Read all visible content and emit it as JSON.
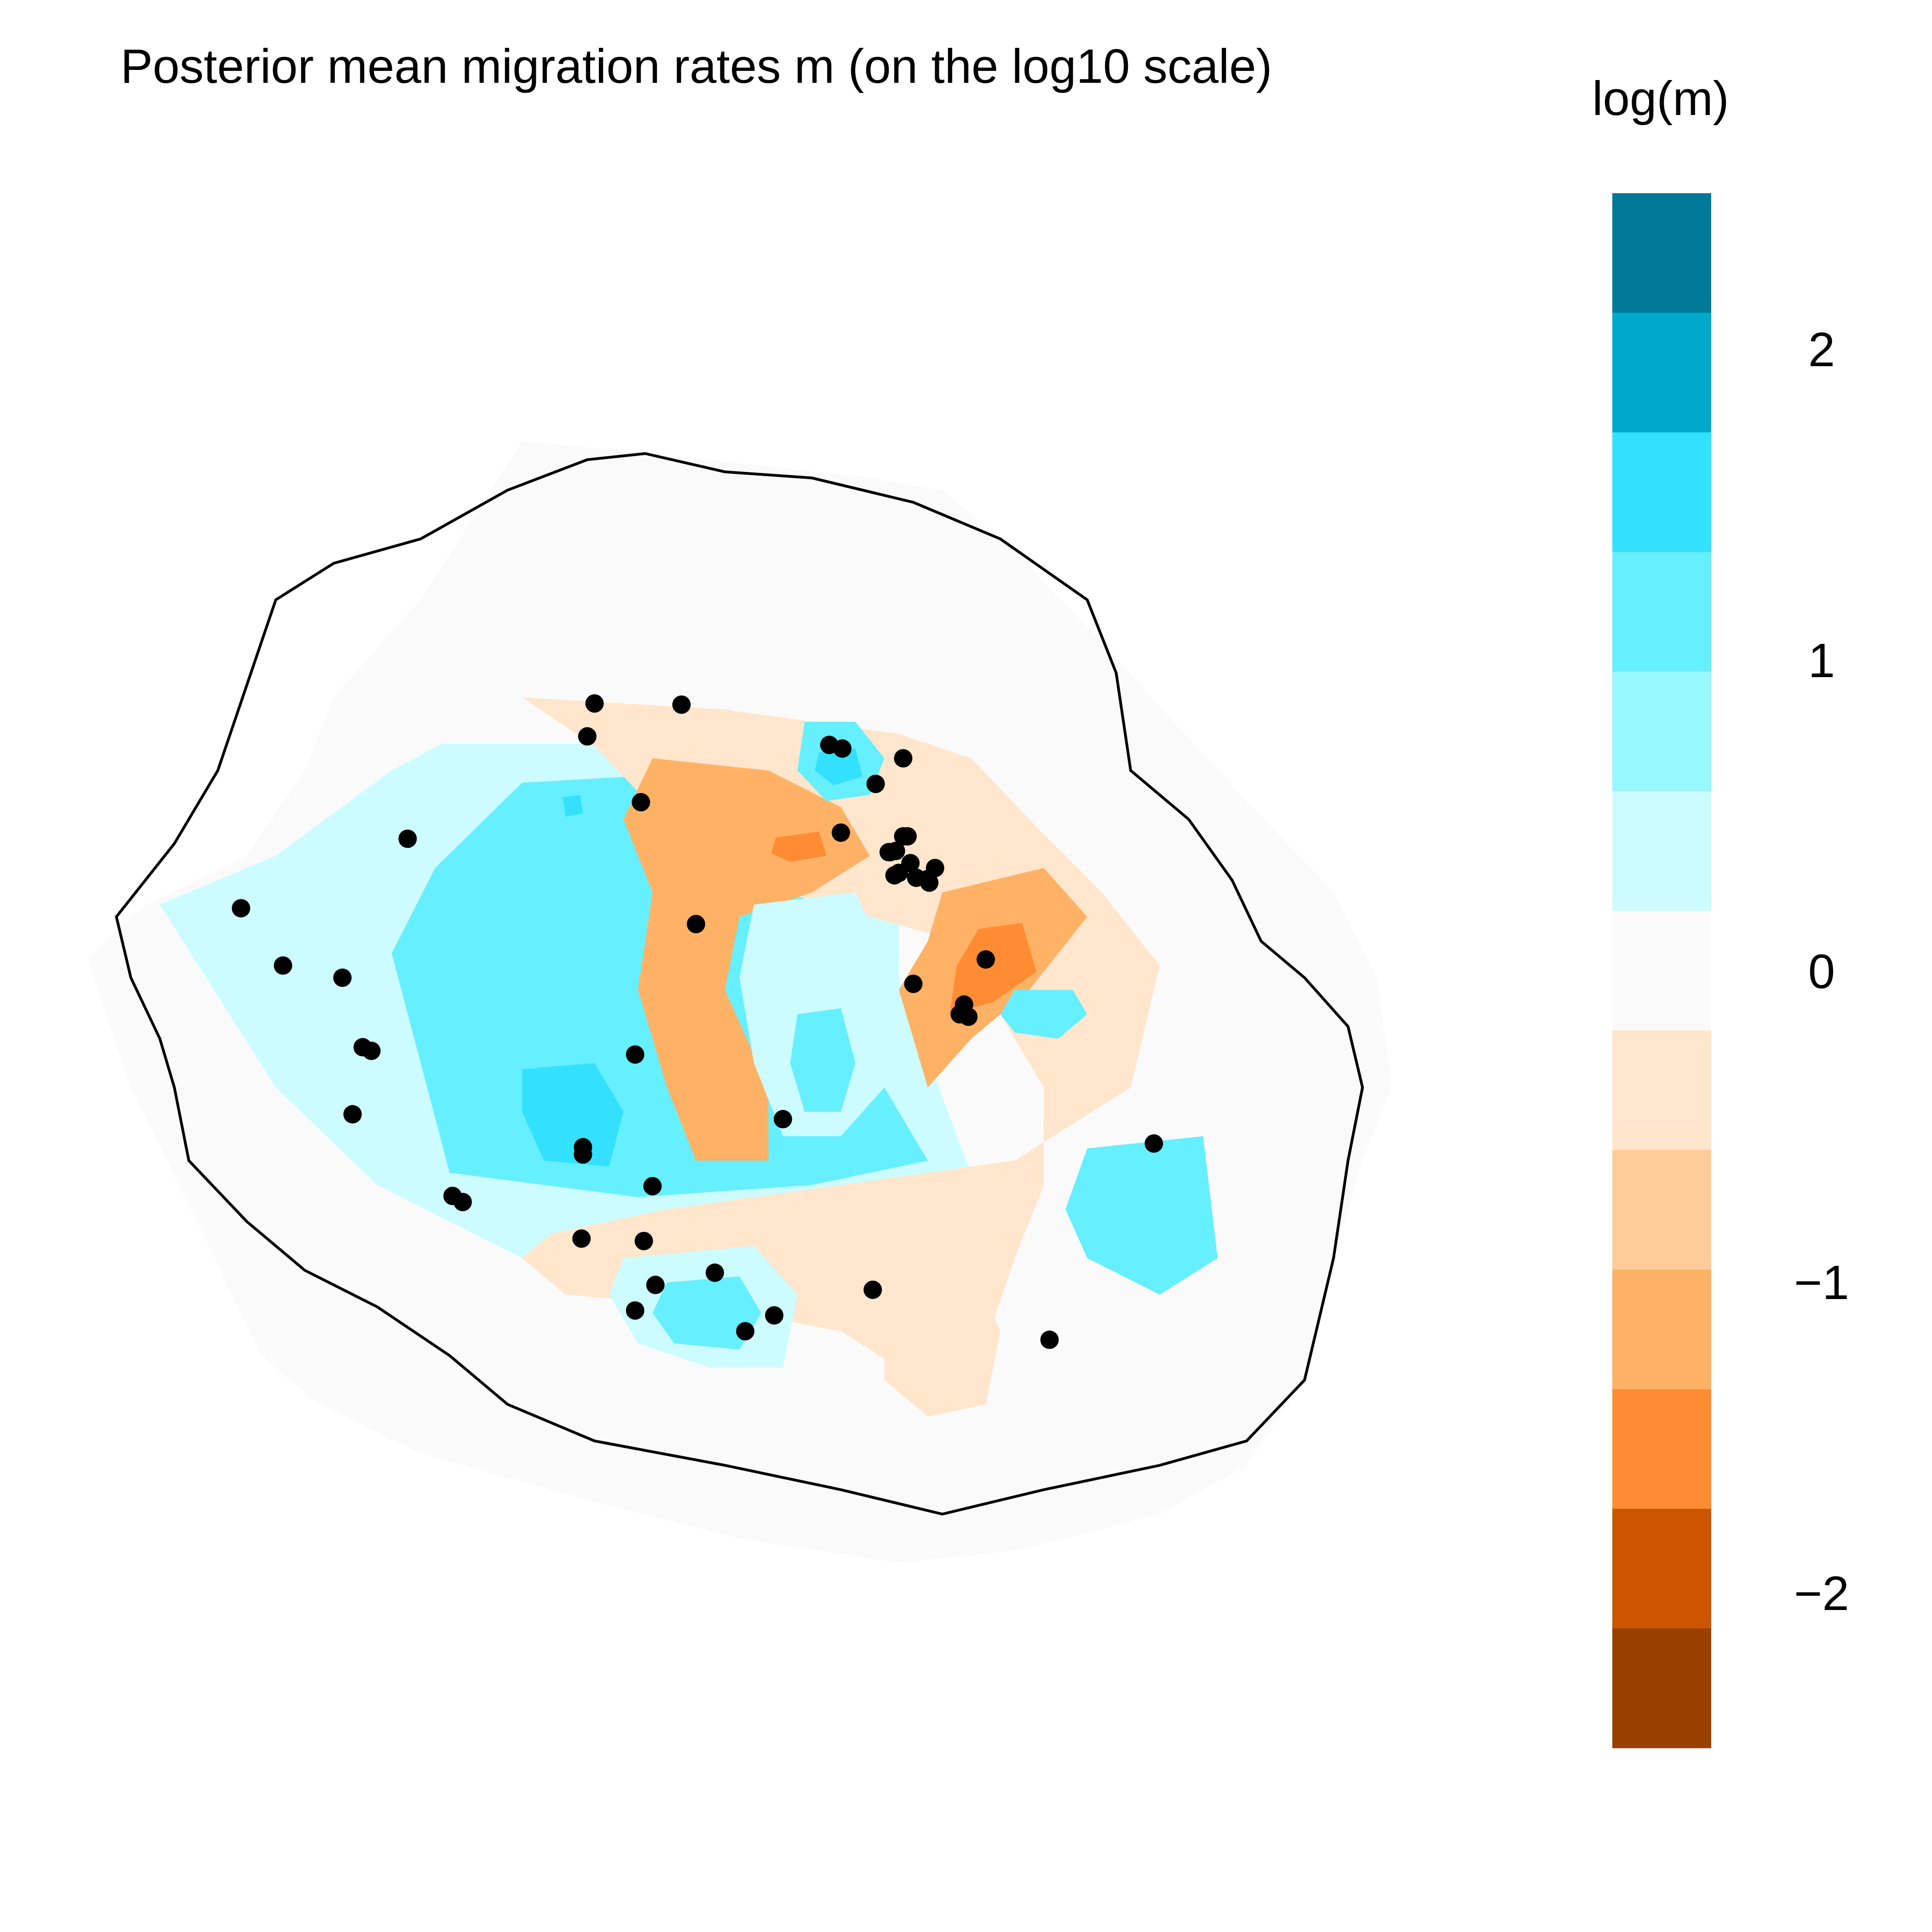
{
  "title": "Posterior mean migration rates m (on the log10 scale)",
  "legend": {
    "title": "log(m)",
    "tick_labels": [
      "2",
      "1",
      "0",
      "−1",
      "−2"
    ],
    "tick_values": [
      2,
      1,
      0,
      -1,
      -2
    ],
    "range": [
      -2.5,
      2.5
    ],
    "colors_top_to_bottom": [
      "#007A99",
      "#00A9CC",
      "#33E1FF",
      "#66EFFF",
      "#99F7FF",
      "#CCFCFF",
      "#FAFAFA",
      "#FFE6CC",
      "#FFCC99",
      "#FFB266",
      "#FF8C33",
      "#CC5500",
      "#994000"
    ]
  },
  "colors": {
    "high_migration": "#00A9CC",
    "neutral": "#FAFAFA",
    "low_migration": "#FF8C33",
    "outline": "#000000",
    "sample": "#000000"
  },
  "chart_data": {
    "type": "heatmap",
    "title": "Posterior mean migration rates m (on the log10 scale)",
    "value_label": "log(m)",
    "value_range": [
      -2.5,
      2.5
    ],
    "grid": false,
    "legend_position": "right",
    "surface_regions": [
      {
        "level": 0.5,
        "shape": [
          [
            0.245,
            0.278
          ],
          [
            0.41,
            0.278
          ],
          [
            0.52,
            0.29
          ],
          [
            0.56,
            0.37
          ],
          [
            0.56,
            0.47
          ],
          [
            0.6,
            0.6
          ],
          [
            0.61,
            0.63
          ],
          [
            0.54,
            0.66
          ],
          [
            0.43,
            0.68
          ],
          [
            0.3,
            0.7
          ],
          [
            0.2,
            0.64
          ],
          [
            0.13,
            0.56
          ],
          [
            0.05,
            0.41
          ],
          [
            0.13,
            0.37
          ],
          [
            0.21,
            0.3
          ]
        ]
      },
      {
        "level": 1.0,
        "shape": [
          [
            0.3,
            0.31
          ],
          [
            0.45,
            0.3
          ],
          [
            0.53,
            0.33
          ],
          [
            0.54,
            0.45
          ],
          [
            0.55,
            0.56
          ],
          [
            0.58,
            0.62
          ],
          [
            0.5,
            0.64
          ],
          [
            0.38,
            0.65
          ],
          [
            0.25,
            0.63
          ],
          [
            0.23,
            0.54
          ],
          [
            0.21,
            0.45
          ],
          [
            0.24,
            0.38
          ]
        ]
      },
      {
        "level": 1.5,
        "shape": [
          [
            0.3,
            0.545
          ],
          [
            0.35,
            0.54
          ],
          [
            0.37,
            0.58
          ],
          [
            0.36,
            0.625
          ],
          [
            0.315,
            0.62
          ],
          [
            0.3,
            0.58
          ]
        ]
      },
      {
        "level": 1.5,
        "shape": [
          [
            0.328,
            0.322
          ],
          [
            0.34,
            0.32
          ],
          [
            0.342,
            0.335
          ],
          [
            0.33,
            0.338
          ]
        ]
      },
      {
        "level": -0.5,
        "shape": [
          [
            0.3,
            0.24
          ],
          [
            0.44,
            0.25
          ],
          [
            0.56,
            0.27
          ],
          [
            0.61,
            0.29
          ],
          [
            0.65,
            0.34
          ],
          [
            0.7,
            0.4
          ],
          [
            0.74,
            0.46
          ],
          [
            0.72,
            0.56
          ],
          [
            0.64,
            0.62
          ],
          [
            0.52,
            0.64
          ],
          [
            0.4,
            0.66
          ],
          [
            0.32,
            0.68
          ],
          [
            0.3,
            0.7
          ],
          [
            0.33,
            0.73
          ],
          [
            0.43,
            0.74
          ],
          [
            0.52,
            0.76
          ],
          [
            0.56,
            0.79
          ],
          [
            0.6,
            0.81
          ],
          [
            0.62,
            0.77
          ],
          [
            0.64,
            0.7
          ],
          [
            0.66,
            0.64
          ],
          [
            0.66,
            0.56
          ],
          [
            0.63,
            0.5
          ],
          [
            0.6,
            0.44
          ],
          [
            0.54,
            0.42
          ],
          [
            0.48,
            0.4
          ],
          [
            0.42,
            0.38
          ],
          [
            0.39,
            0.33
          ],
          [
            0.35,
            0.28
          ]
        ]
      },
      {
        "level": -1.0,
        "shape": [
          [
            0.39,
            0.29
          ],
          [
            0.47,
            0.3
          ],
          [
            0.52,
            0.33
          ],
          [
            0.54,
            0.37
          ],
          [
            0.5,
            0.4
          ],
          [
            0.45,
            0.42
          ],
          [
            0.44,
            0.48
          ],
          [
            0.47,
            0.56
          ],
          [
            0.47,
            0.62
          ],
          [
            0.42,
            0.62
          ],
          [
            0.4,
            0.56
          ],
          [
            0.38,
            0.48
          ],
          [
            0.39,
            0.4
          ],
          [
            0.37,
            0.34
          ]
        ]
      },
      {
        "level": -1.0,
        "shape": [
          [
            0.59,
            0.4
          ],
          [
            0.66,
            0.38
          ],
          [
            0.69,
            0.42
          ],
          [
            0.65,
            0.48
          ],
          [
            0.61,
            0.52
          ],
          [
            0.58,
            0.56
          ],
          [
            0.56,
            0.48
          ],
          [
            0.58,
            0.44
          ]
        ]
      },
      {
        "level": -1.5,
        "shape": [
          [
            0.475,
            0.355
          ],
          [
            0.505,
            0.35
          ],
          [
            0.51,
            0.37
          ],
          [
            0.485,
            0.375
          ],
          [
            0.472,
            0.368
          ]
        ]
      },
      {
        "level": -1.5,
        "shape": [
          [
            0.615,
            0.43
          ],
          [
            0.645,
            0.425
          ],
          [
            0.655,
            0.465
          ],
          [
            0.625,
            0.49
          ],
          [
            0.595,
            0.5
          ],
          [
            0.6,
            0.46
          ]
        ]
      },
      {
        "level": 1.0,
        "shape": [
          [
            0.495,
            0.26
          ],
          [
            0.53,
            0.26
          ],
          [
            0.55,
            0.29
          ],
          [
            0.54,
            0.32
          ],
          [
            0.51,
            0.325
          ],
          [
            0.49,
            0.3
          ]
        ]
      },
      {
        "level": 1.5,
        "shape": [
          [
            0.505,
            0.285
          ],
          [
            0.53,
            0.282
          ],
          [
            0.535,
            0.305
          ],
          [
            0.515,
            0.312
          ],
          [
            0.502,
            0.3
          ]
        ]
      },
      {
        "level": 0.5,
        "shape": [
          [
            0.46,
            0.41
          ],
          [
            0.53,
            0.4
          ],
          [
            0.55,
            0.45
          ],
          [
            0.55,
            0.56
          ],
          [
            0.52,
            0.6
          ],
          [
            0.48,
            0.6
          ],
          [
            0.46,
            0.54
          ],
          [
            0.45,
            0.47
          ]
        ]
      },
      {
        "level": 1.0,
        "shape": [
          [
            0.49,
            0.5
          ],
          [
            0.52,
            0.495
          ],
          [
            0.53,
            0.54
          ],
          [
            0.52,
            0.58
          ],
          [
            0.495,
            0.58
          ],
          [
            0.485,
            0.54
          ]
        ]
      },
      {
        "level": 1.0,
        "shape": [
          [
            0.64,
            0.48
          ],
          [
            0.68,
            0.48
          ],
          [
            0.69,
            0.5
          ],
          [
            0.67,
            0.52
          ],
          [
            0.64,
            0.515
          ],
          [
            0.63,
            0.5
          ]
        ]
      },
      {
        "level": 1.0,
        "shape": [
          [
            0.69,
            0.61
          ],
          [
            0.77,
            0.6
          ],
          [
            0.78,
            0.7
          ],
          [
            0.74,
            0.73
          ],
          [
            0.69,
            0.7
          ],
          [
            0.675,
            0.66
          ]
        ]
      },
      {
        "level": 0.5,
        "shape": [
          [
            0.37,
            0.7
          ],
          [
            0.46,
            0.69
          ],
          [
            0.49,
            0.73
          ],
          [
            0.48,
            0.79
          ],
          [
            0.43,
            0.79
          ],
          [
            0.38,
            0.77
          ],
          [
            0.36,
            0.73
          ]
        ]
      },
      {
        "level": 1.0,
        "shape": [
          [
            0.4,
            0.72
          ],
          [
            0.45,
            0.715
          ],
          [
            0.465,
            0.745
          ],
          [
            0.45,
            0.775
          ],
          [
            0.405,
            0.77
          ],
          [
            0.39,
            0.745
          ]
        ]
      },
      {
        "level": -0.5,
        "shape": [
          [
            0.55,
            0.71
          ],
          [
            0.61,
            0.7
          ],
          [
            0.63,
            0.76
          ],
          [
            0.62,
            0.82
          ],
          [
            0.58,
            0.83
          ],
          [
            0.55,
            0.8
          ]
        ]
      }
    ],
    "sample_points": [
      [
        0.35,
        0.245
      ],
      [
        0.41,
        0.246
      ],
      [
        0.345,
        0.272
      ],
      [
        0.382,
        0.326
      ],
      [
        0.512,
        0.279
      ],
      [
        0.521,
        0.282
      ],
      [
        0.563,
        0.29
      ],
      [
        0.544,
        0.311
      ],
      [
        0.221,
        0.356
      ],
      [
        0.52,
        0.351
      ],
      [
        0.563,
        0.354
      ],
      [
        0.566,
        0.354
      ],
      [
        0.554,
        0.367
      ],
      [
        0.558,
        0.366
      ],
      [
        0.553,
        0.367
      ],
      [
        0.568,
        0.376
      ],
      [
        0.56,
        0.384
      ],
      [
        0.557,
        0.386
      ],
      [
        0.572,
        0.388
      ],
      [
        0.58,
        0.389
      ],
      [
        0.585,
        0.38
      ],
      [
        0.581,
        0.392
      ],
      [
        0.106,
        0.413
      ],
      [
        0.42,
        0.426
      ],
      [
        0.135,
        0.46
      ],
      [
        0.176,
        0.47
      ],
      [
        0.62,
        0.455
      ],
      [
        0.57,
        0.475
      ],
      [
        0.605,
        0.492
      ],
      [
        0.602,
        0.5
      ],
      [
        0.608,
        0.502
      ],
      [
        0.19,
        0.527
      ],
      [
        0.196,
        0.53
      ],
      [
        0.378,
        0.533
      ],
      [
        0.183,
        0.582
      ],
      [
        0.48,
        0.586
      ],
      [
        0.736,
        0.606
      ],
      [
        0.342,
        0.609
      ],
      [
        0.342,
        0.615
      ],
      [
        0.39,
        0.641
      ],
      [
        0.252,
        0.649
      ],
      [
        0.259,
        0.654
      ],
      [
        0.341,
        0.684
      ],
      [
        0.384,
        0.686
      ],
      [
        0.433,
        0.712
      ],
      [
        0.392,
        0.722
      ],
      [
        0.542,
        0.726
      ],
      [
        0.378,
        0.743
      ],
      [
        0.474,
        0.747
      ],
      [
        0.454,
        0.76
      ],
      [
        0.664,
        0.767
      ]
    ]
  }
}
